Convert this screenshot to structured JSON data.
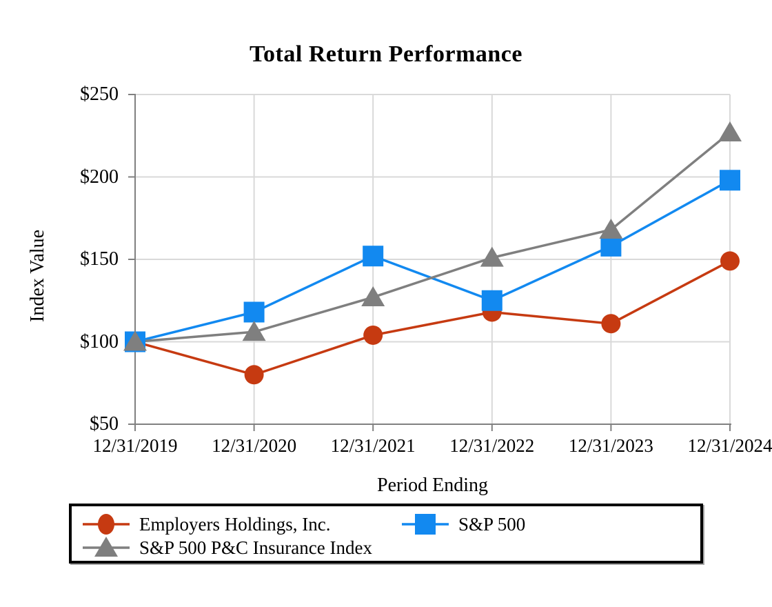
{
  "title": "Total Return Performance",
  "colors": {
    "series_ehi": "#C63A11",
    "series_sp500": "#1289F0",
    "series_pc_index": "#7F7F7F",
    "gridline": "#D9D9D9",
    "axis": "#808080",
    "legend_border": "#000000"
  },
  "chart_data": {
    "type": "line",
    "x": [
      "12/31/2019",
      "12/31/2020",
      "12/31/2021",
      "12/31/2022",
      "12/31/2023",
      "12/31/2024"
    ],
    "xlabel": "Period Ending",
    "ylabel": "Index Value",
    "ylim": [
      50,
      250
    ],
    "ytick_step": 50,
    "ytick_labels": [
      "$50",
      "$100",
      "$150",
      "$200",
      "$250"
    ],
    "grid": true,
    "legend_position": "bottom-box",
    "series": [
      {
        "name": "Employers Holdings, Inc.",
        "marker": "circle",
        "color": "#C63A11",
        "values": [
          100,
          80,
          104,
          118,
          111,
          149
        ]
      },
      {
        "name": "S&P 500",
        "marker": "square",
        "color": "#1289F0",
        "values": [
          100,
          118,
          152,
          125,
          158,
          198
        ]
      },
      {
        "name": "S&P 500 P&C Insurance Index",
        "marker": "triangle",
        "color": "#7F7F7F",
        "values": [
          100,
          106,
          127,
          151,
          168,
          227
        ]
      }
    ]
  }
}
